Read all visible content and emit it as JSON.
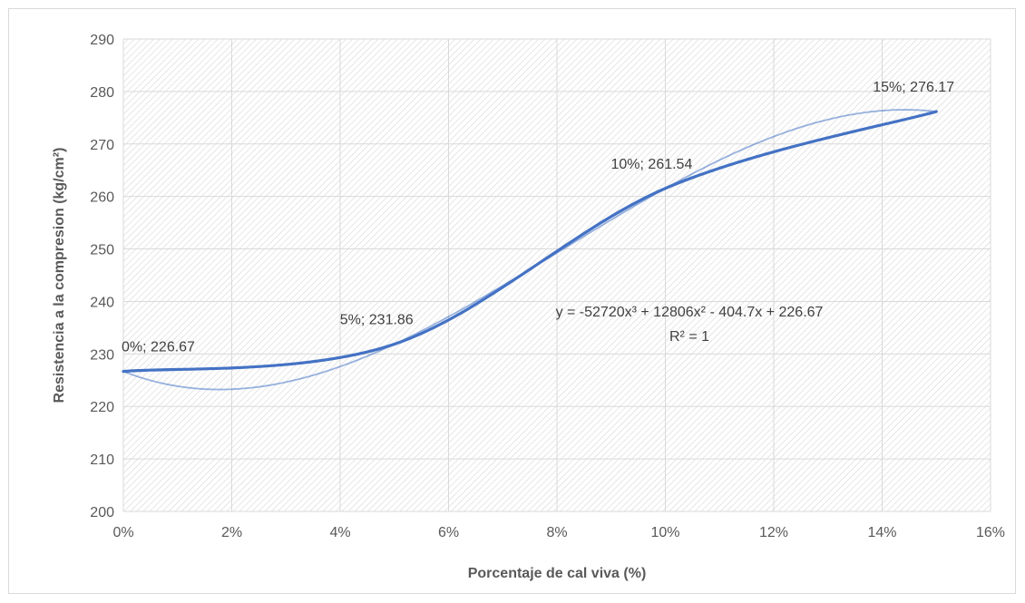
{
  "chart_data": {
    "type": "scatter",
    "xlabel": "Porcentaje de cal viva (%)",
    "ylabel": "Resistencia a la compresion (kg/cm²)",
    "xlim": [
      0,
      0.16
    ],
    "ylim": [
      200,
      290
    ],
    "x_ticks": [
      "0%",
      "2%",
      "4%",
      "6%",
      "8%",
      "10%",
      "12%",
      "14%",
      "16%"
    ],
    "y_ticks": [
      "200",
      "210",
      "220",
      "230",
      "240",
      "250",
      "260",
      "270",
      "280",
      "290"
    ],
    "grid": true,
    "series": [
      {
        "x": [
          0,
          0.05,
          0.1,
          0.15
        ],
        "y": [
          226.67,
          231.86,
          261.54,
          276.17
        ],
        "labels": [
          "0%; 226.67",
          "5%; 231.86",
          "10%; 261.54",
          "15%; 276.17"
        ],
        "color": "#4472c4"
      }
    ],
    "trendline": {
      "type": "polynomial",
      "equation": "y = -52720x³ + 12806x² - 404.7x + 226.67",
      "r_squared": "R² = 1",
      "coefficients": [
        -52720,
        12806,
        -404.7,
        226.67
      ],
      "color": "#4472c4"
    }
  }
}
